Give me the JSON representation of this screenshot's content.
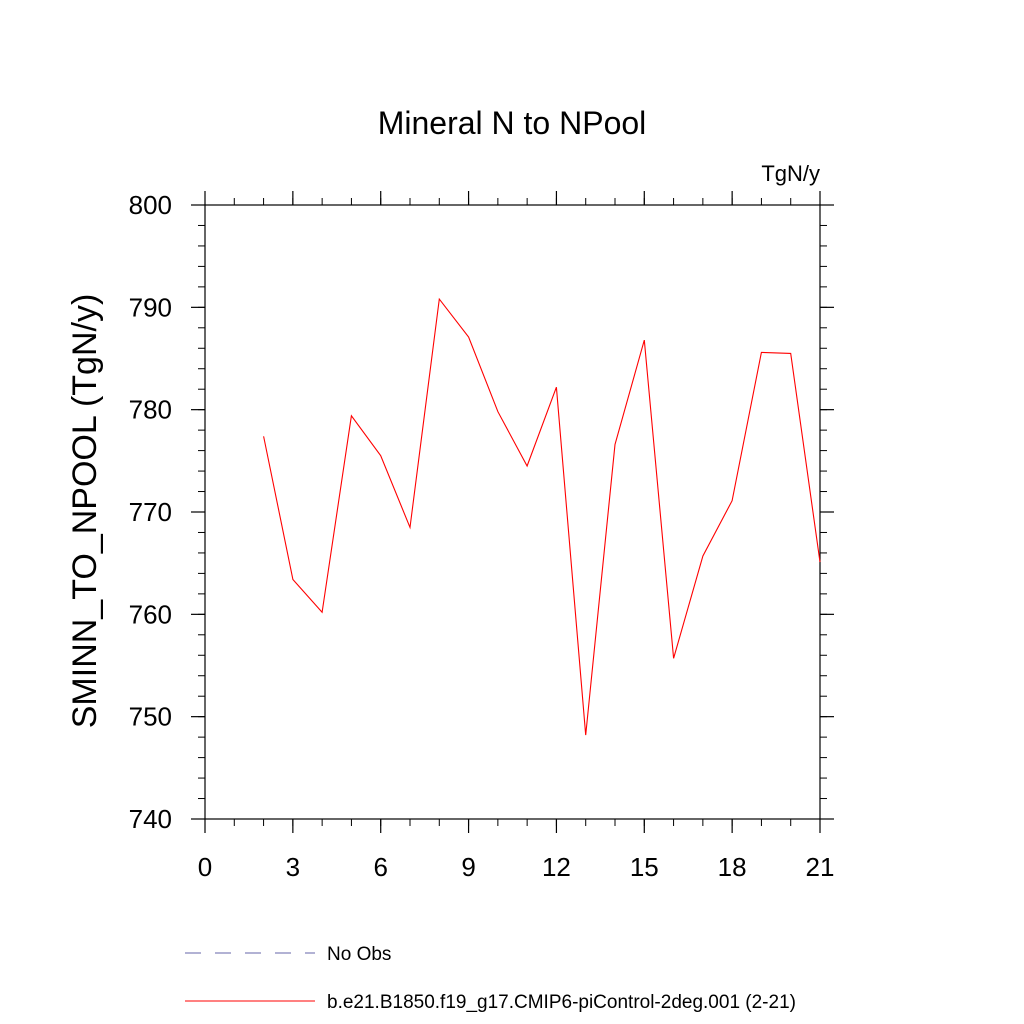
{
  "chart_data": {
    "type": "line",
    "title": "Mineral N to NPool",
    "units_label": "TgN/y",
    "ylabel": "SMINN_TO_NPOOL  (TgN/y)",
    "xlabel": "",
    "xlim": [
      0,
      21
    ],
    "ylim": [
      740,
      800
    ],
    "x_ticks": [
      0,
      3,
      6,
      9,
      12,
      15,
      18,
      21
    ],
    "y_ticks": [
      740,
      750,
      760,
      770,
      780,
      790,
      800
    ],
    "x_minor_step": 1,
    "y_minor_step": 2,
    "grid": false,
    "series": [
      {
        "name": "b.e21.B1850.f19_g17.CMIP6-piControl-2deg.001 (2-21)",
        "color": "#ff0000",
        "dash": "solid",
        "x": [
          2,
          3,
          4,
          5,
          6,
          7,
          8,
          9,
          10,
          11,
          12,
          13,
          14,
          15,
          16,
          17,
          18,
          19,
          20,
          21
        ],
        "y": [
          777.4,
          763.4,
          760.2,
          779.4,
          775.5,
          768.5,
          790.8,
          787.1,
          779.8,
          774.5,
          782.2,
          748.2,
          776.6,
          786.8,
          755.7,
          765.7,
          771.1,
          785.6,
          785.5,
          765.1
        ]
      }
    ],
    "legend": [
      {
        "label": "No Obs",
        "color": "#6666aa",
        "dash": "dashed"
      },
      {
        "label": "b.e21.B1850.f19_g17.CMIP6-piControl-2deg.001 (2-21)",
        "color": "#ff0000",
        "dash": "solid"
      }
    ],
    "legend_position": "bottom"
  }
}
